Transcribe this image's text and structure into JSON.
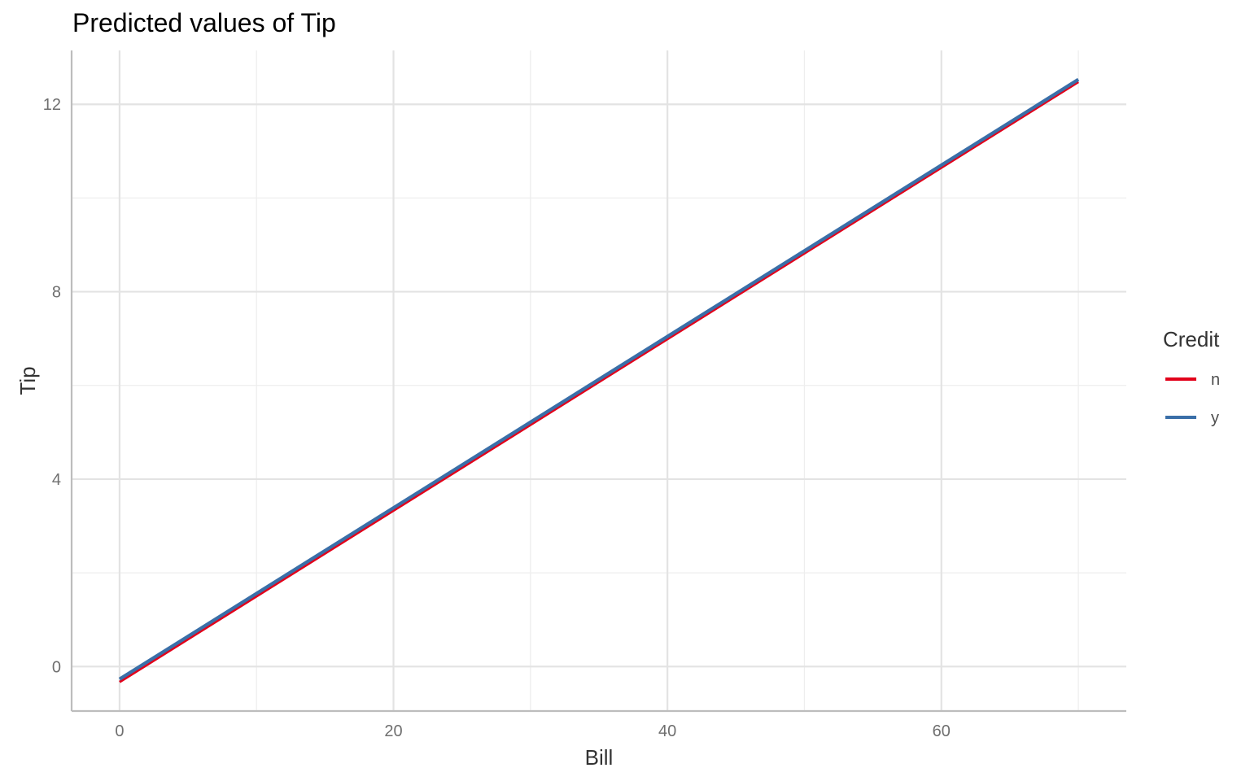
{
  "chart_data": {
    "type": "line",
    "title": "Predicted values of Tip",
    "xlabel": "Bill",
    "ylabel": "Tip",
    "xlim": [
      -3.5,
      73.5
    ],
    "ylim": [
      -0.95,
      13.15
    ],
    "x_ticks": [
      0,
      20,
      40,
      60
    ],
    "y_ticks": [
      0,
      4,
      8,
      12
    ],
    "grid": true,
    "legend": {
      "title": "Credit",
      "position": "right"
    },
    "series": [
      {
        "name": "n",
        "color": "#e2001a",
        "x": [
          0,
          70
        ],
        "y": [
          -0.33,
          12.48
        ]
      },
      {
        "name": "y",
        "color": "#3a6fa8",
        "x": [
          0,
          70
        ],
        "y": [
          -0.27,
          12.53
        ]
      }
    ]
  }
}
